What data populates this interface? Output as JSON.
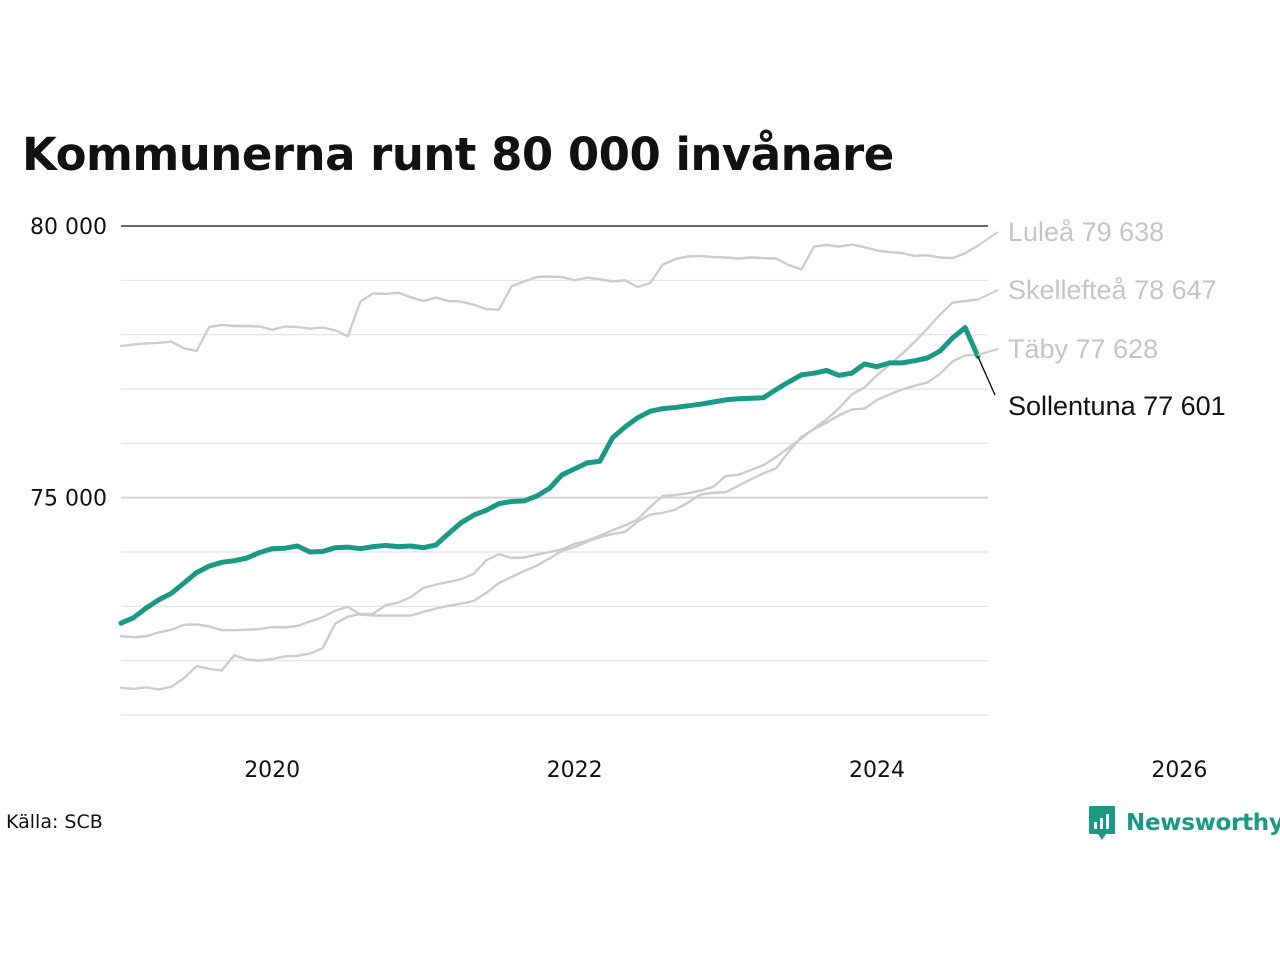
{
  "chart_data": {
    "type": "line",
    "title": "Kommunerna runt 80 000 invånare",
    "ylim": [
      71000,
      80000
    ],
    "y_ticks_labeled": [
      {
        "value": 80000,
        "label": "80 000"
      },
      {
        "value": 75000,
        "label": "75 000"
      }
    ],
    "y_gridlines": [
      71000,
      72000,
      73000,
      74000,
      75000,
      76000,
      77000,
      78000,
      79000,
      80000
    ],
    "xlim": [
      "2019-01",
      "2026-01"
    ],
    "x_ticks": [
      {
        "value": "2020-01",
        "label": "2020"
      },
      {
        "value": "2022-01",
        "label": "2022"
      },
      {
        "value": "2024-01",
        "label": "2024"
      },
      {
        "value": "2026-01",
        "label": "2026"
      }
    ],
    "x": [
      "2019-01",
      "2019-02",
      "2019-03",
      "2019-04",
      "2019-05",
      "2019-06",
      "2019-07",
      "2019-08",
      "2019-09",
      "2019-10",
      "2019-11",
      "2019-12",
      "2020-01",
      "2020-02",
      "2020-03",
      "2020-04",
      "2020-05",
      "2020-06",
      "2020-07",
      "2020-08",
      "2020-09",
      "2020-10",
      "2020-11",
      "2020-12",
      "2021-01",
      "2021-02",
      "2021-03",
      "2021-04",
      "2021-05",
      "2021-06",
      "2021-07",
      "2021-08",
      "2021-09",
      "2021-10",
      "2021-11",
      "2021-12",
      "2022-01",
      "2022-02",
      "2022-03",
      "2022-04",
      "2022-05",
      "2022-06",
      "2022-07",
      "2022-08",
      "2022-09",
      "2022-10",
      "2022-11",
      "2022-12",
      "2023-01",
      "2023-02",
      "2023-03",
      "2023-04",
      "2023-05",
      "2023-06",
      "2023-07",
      "2023-08",
      "2023-09",
      "2023-10",
      "2023-11",
      "2023-12",
      "2024-01",
      "2024-02",
      "2024-03",
      "2024-04",
      "2024-05",
      "2024-06",
      "2024-07",
      "2024-08",
      "2024-09"
    ],
    "series": [
      {
        "name": "Luleå",
        "label": "Luleå 79 638",
        "color": "#cccccc",
        "highlight": false,
        "values": [
          77790,
          77820,
          77840,
          77850,
          77870,
          77750,
          77700,
          78140,
          78180,
          78160,
          78160,
          78150,
          78090,
          78150,
          78140,
          78110,
          78130,
          78080,
          77970,
          78610,
          78760,
          78750,
          78770,
          78690,
          78620,
          78680,
          78620,
          78610,
          78550,
          78470,
          78460,
          78890,
          78980,
          79060,
          79070,
          79060,
          79000,
          79050,
          79020,
          78980,
          79000,
          78880,
          78950,
          79290,
          79390,
          79440,
          79450,
          79430,
          79420,
          79400,
          79420,
          79410,
          79400,
          79280,
          79200,
          79620,
          79650,
          79620,
          79660,
          79610,
          79550,
          79520,
          79500,
          79450,
          79460,
          79420,
          79410,
          79500,
          79638
        ]
      },
      {
        "name": "Skellefteå",
        "label": "Skellefteå 78 647",
        "color": "#cccccc",
        "highlight": false,
        "values": [
          71500,
          71480,
          71510,
          71470,
          71520,
          71680,
          71900,
          71850,
          71820,
          72100,
          72020,
          72000,
          72030,
          72080,
          72090,
          72130,
          72230,
          72680,
          72810,
          72860,
          72860,
          73020,
          73070,
          73170,
          73340,
          73400,
          73450,
          73500,
          73600,
          73850,
          73960,
          73890,
          73900,
          73950,
          74000,
          74050,
          74150,
          74210,
          74300,
          74400,
          74490,
          74600,
          74830,
          75030,
          75050,
          75080,
          75130,
          75200,
          75400,
          75420,
          75510,
          75600,
          75750,
          75920,
          76090,
          76270,
          76440,
          76650,
          76900,
          77030,
          77250,
          77450,
          77650,
          77870,
          78110,
          78370,
          78590,
          78620,
          78647
        ]
      },
      {
        "name": "Täby",
        "label": "Täby 77 628",
        "color": "#cccccc",
        "highlight": false,
        "values": [
          72450,
          72430,
          72450,
          72520,
          72570,
          72660,
          72670,
          72630,
          72560,
          72560,
          72570,
          72580,
          72620,
          72610,
          72640,
          72720,
          72800,
          72920,
          72990,
          72850,
          72830,
          72830,
          72830,
          72830,
          72900,
          72960,
          73010,
          73050,
          73100,
          73250,
          73430,
          73540,
          73650,
          73750,
          73880,
          74020,
          74090,
          74190,
          74270,
          74330,
          74370,
          74560,
          74690,
          74720,
          74780,
          74910,
          75060,
          75090,
          75100,
          75220,
          75340,
          75450,
          75540,
          75850,
          76120,
          76260,
          76380,
          76520,
          76620,
          76640,
          76800,
          76900,
          76990,
          77060,
          77120,
          77280,
          77510,
          77620,
          77628
        ]
      },
      {
        "name": "Sollentuna",
        "label": "Sollentuna 77 601",
        "color": "#1a9a85",
        "highlight": true,
        "values": [
          72690,
          72790,
          72970,
          73120,
          73240,
          73430,
          73620,
          73740,
          73810,
          73840,
          73890,
          73990,
          74060,
          74070,
          74110,
          74000,
          74010,
          74080,
          74090,
          74060,
          74100,
          74120,
          74100,
          74110,
          74080,
          74130,
          74340,
          74540,
          74680,
          74770,
          74890,
          74930,
          74940,
          75030,
          75170,
          75420,
          75530,
          75640,
          75670,
          76100,
          76300,
          76470,
          76590,
          76640,
          76660,
          76690,
          76720,
          76760,
          76800,
          76820,
          76830,
          76840,
          76990,
          77130,
          77260,
          77290,
          77340,
          77250,
          77290,
          77460,
          77410,
          77480,
          77480,
          77520,
          77570,
          77700,
          77940,
          78130,
          77601
        ]
      }
    ]
  },
  "source": "Källa: SCB",
  "brand": {
    "name": "Newsworthy",
    "icon": "newsworthy-logo-icon",
    "color": "#1a9a85"
  }
}
